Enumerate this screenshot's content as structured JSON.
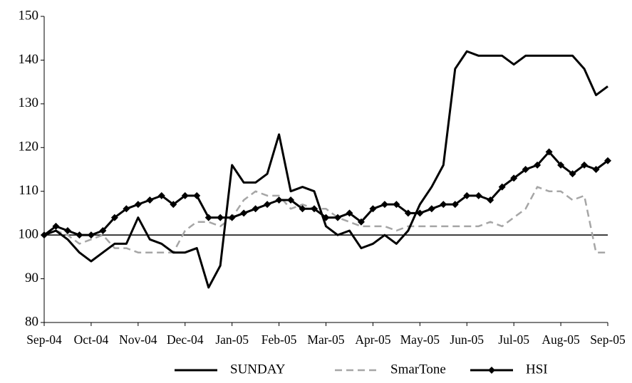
{
  "chart_data": {
    "type": "line",
    "categories": [
      "Sep-04",
      null,
      null,
      null,
      "Oct-04",
      null,
      null,
      null,
      "Nov-04",
      null,
      null,
      null,
      "Dec-04",
      null,
      null,
      null,
      "Jan-05",
      null,
      null,
      null,
      "Feb-05",
      null,
      null,
      null,
      "Mar-05",
      null,
      null,
      null,
      "Apr-05",
      null,
      null,
      null,
      "May-05",
      null,
      null,
      null,
      "Jun-05",
      null,
      null,
      null,
      "Jul-05",
      null,
      null,
      null,
      "Aug-05",
      null,
      null,
      null,
      "Sep-05"
    ],
    "series": [
      {
        "name": "SUNDAY",
        "color": "#000000",
        "dash": false,
        "marker": null,
        "values": [
          100,
          101,
          99,
          96,
          94,
          96,
          98,
          98,
          104,
          99,
          98,
          96,
          96,
          97,
          88,
          93,
          116,
          112,
          112,
          114,
          123,
          110,
          111,
          110,
          102,
          100,
          101,
          97,
          98,
          100,
          98,
          101,
          107,
          111,
          116,
          138,
          142,
          141,
          141,
          141,
          139,
          141,
          141,
          141,
          141,
          141,
          138,
          132,
          134
        ]
      },
      {
        "name": "SmarTone",
        "color": "#a6a6a6",
        "dash": true,
        "marker": null,
        "values": [
          100,
          101,
          100,
          98,
          99,
          100,
          97,
          97,
          96,
          96,
          96,
          96,
          101,
          103,
          103,
          102,
          104,
          108,
          110,
          109,
          109,
          106,
          107,
          106,
          106,
          104,
          103,
          102,
          102,
          102,
          101,
          102,
          102,
          102,
          102,
          102,
          102,
          102,
          103,
          102,
          104,
          106,
          111,
          110,
          110,
          108,
          109,
          96,
          96
        ]
      },
      {
        "name": "HSI",
        "color": "#000000",
        "dash": false,
        "marker": "diamond",
        "values": [
          100,
          102,
          101,
          100,
          100,
          101,
          104,
          106,
          107,
          108,
          109,
          107,
          109,
          109,
          104,
          104,
          104,
          105,
          106,
          107,
          108,
          108,
          106,
          106,
          104,
          104,
          105,
          103,
          106,
          107,
          107,
          105,
          105,
          106,
          107,
          107,
          109,
          109,
          108,
          111,
          113,
          115,
          116,
          119,
          116,
          114,
          116,
          115,
          117
        ]
      }
    ],
    "reference_line": 100,
    "ylim": [
      80,
      150
    ],
    "yticks": [
      80,
      90,
      100,
      110,
      120,
      130,
      140,
      150
    ],
    "legend": "bottom"
  }
}
